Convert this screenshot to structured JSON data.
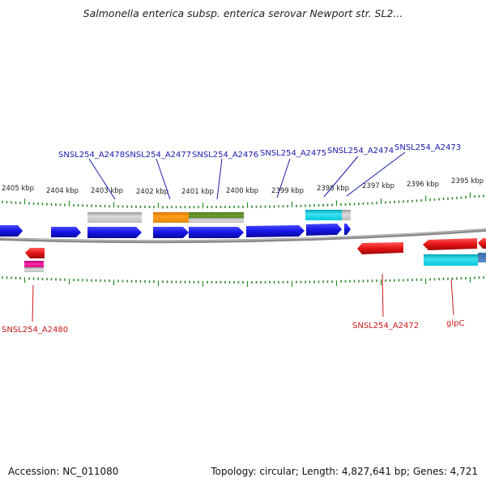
{
  "title": "Salmonella enterica subsp. enterica serovar Newport str. SL2...",
  "footer": {
    "accession": "Accession: NC_011080",
    "summary": "Topology: circular; Length: 4,827,641 bp; Genes: 4,721"
  },
  "colors": {
    "forward_gene": "#1414e6",
    "reverse_gene": "#e61414",
    "backbone": "#8a8a8a",
    "tick": "#2e8b2e",
    "label_forward": "#1a1aa8",
    "label_reverse": "#c81818"
  },
  "scale_labels": [
    "2405 kbp",
    "2404 kbp",
    "2403 kbp",
    "2402 kbp",
    "2401 kbp",
    "2400 kbp",
    "2399 kbp",
    "2398 kbp",
    "2397 kbp",
    "2396 kbp",
    "2395 kbp"
  ],
  "gene_labels_forward": [
    "SNSL254_A2478",
    "SNSL254_A2477",
    "SNSL254_A2476",
    "SNSL254_A2475",
    "SNSL254_A2474",
    "SNSL254_A2473"
  ],
  "gene_labels_reverse": [
    "SNSL254_A2480",
    "SNSL254_A2472",
    "glpC"
  ]
}
